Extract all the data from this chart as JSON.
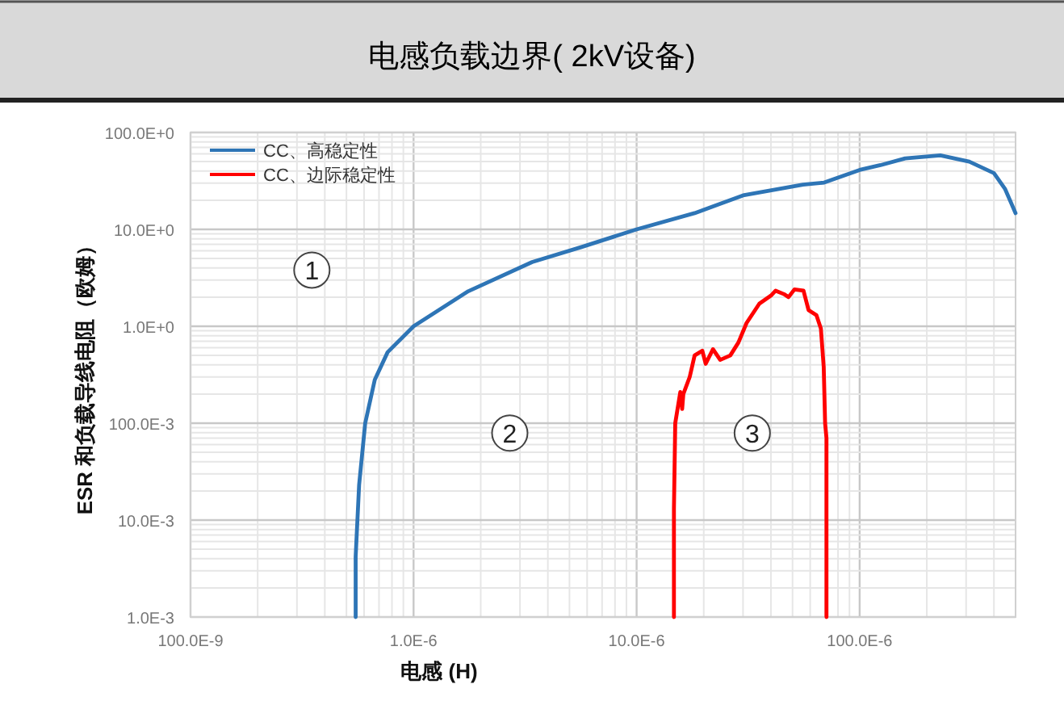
{
  "chart_data": {
    "type": "line",
    "title": "电感负载边界( 2kV设备)",
    "xlabel": "电感 (H)",
    "ylabel": "ESR 和负载导线电阻（欧姆）",
    "log": "xy",
    "grid": true,
    "legend": "top left",
    "xlim": [
      1e-07,
      0.0005
    ],
    "ylim": [
      0.001,
      100
    ],
    "xticks": [
      {
        "value": 1e-07,
        "label": "100.0E-9"
      },
      {
        "value": 1e-06,
        "label": "1.0E-6"
      },
      {
        "value": 1e-05,
        "label": "10.0E-6"
      },
      {
        "value": 0.0001,
        "label": "100.0E-6"
      }
    ],
    "yticks": [
      {
        "value": 0.001,
        "label": "1.0E-3"
      },
      {
        "value": 0.01,
        "label": "10.0E-3"
      },
      {
        "value": 0.1,
        "label": "100.0E-3"
      },
      {
        "value": 1,
        "label": "1.0E+0"
      },
      {
        "value": 10,
        "label": "10.0E+0"
      },
      {
        "value": 100,
        "label": "100.0E+0"
      }
    ],
    "series": [
      {
        "name": "CC、高稳定性",
        "color": "#2e75b6",
        "x": [
          5.5e-07,
          5.5e-07,
          5.7e-07,
          6.07e-07,
          6.7e-07,
          7.65e-07,
          1e-06,
          1.76e-06,
          3.4e-06,
          5.7e-06,
          1e-05,
          1.82e-05,
          3e-05,
          5.57e-05,
          6.93e-05,
          0.0001,
          0.000124,
          0.00016,
          0.00023,
          0.00031,
          0.0004,
          0.000449,
          0.0005
        ],
        "values": [
          0.001,
          0.0042,
          0.023,
          0.1,
          0.28,
          0.54,
          1.0,
          2.3,
          4.6,
          6.6,
          10,
          14.7,
          22.4,
          29,
          30.4,
          41,
          46,
          54,
          58,
          50,
          38,
          26,
          14.7
        ]
      },
      {
        "name": "CC、边际稳定性",
        "color": "#ff0000",
        "x": [
          1.47e-05,
          1.47e-05,
          1.49e-05,
          1.57e-05,
          1.6e-05,
          1.62e-05,
          1.73e-05,
          1.82e-05,
          1.97e-05,
          2.04e-05,
          2.2e-05,
          2.37e-05,
          2.63e-05,
          2.86e-05,
          3.11e-05,
          3.55e-05,
          4e-05,
          4.2e-05,
          4.57e-05,
          4.8e-05,
          5.1e-05,
          5.6e-05,
          5.9e-05,
          6.4e-05,
          6.7e-05,
          6.9e-05,
          7e-05,
          7.1e-05,
          7.1e-05
        ],
        "values": [
          0.001,
          0.013,
          0.1,
          0.21,
          0.14,
          0.2,
          0.3,
          0.5,
          0.56,
          0.41,
          0.58,
          0.45,
          0.5,
          0.68,
          1.08,
          1.71,
          2.07,
          2.33,
          2.15,
          2.0,
          2.4,
          2.33,
          1.47,
          1.3,
          0.95,
          0.38,
          0.1,
          0.07,
          0.001
        ]
      }
    ],
    "annotations": [
      {
        "text": "1",
        "x": 3.5e-07,
        "y": 3.8
      },
      {
        "text": "2",
        "x": 2.7e-06,
        "y": 0.079
      },
      {
        "text": "3",
        "x": 3.3e-05,
        "y": 0.079
      }
    ]
  }
}
